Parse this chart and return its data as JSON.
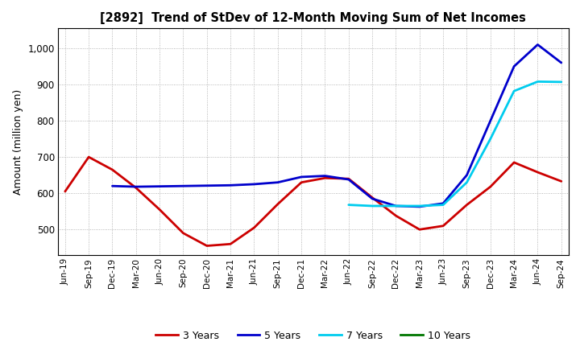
{
  "title": "[2892]  Trend of StDev of 12-Month Moving Sum of Net Incomes",
  "ylabel": "Amount (million yen)",
  "background_color": "#ffffff",
  "grid_color": "#999999",
  "ylim": [
    430,
    1055
  ],
  "yticks": [
    500,
    600,
    700,
    800,
    900,
    1000
  ],
  "ytick_labels": [
    "500",
    "600",
    "700",
    "800",
    "900",
    "1,000"
  ],
  "x_labels": [
    "Jun-19",
    "Sep-19",
    "Dec-19",
    "Mar-20",
    "Jun-20",
    "Sep-20",
    "Dec-20",
    "Mar-21",
    "Jun-21",
    "Sep-21",
    "Dec-21",
    "Mar-22",
    "Jun-22",
    "Sep-22",
    "Dec-22",
    "Mar-23",
    "Jun-23",
    "Sep-23",
    "Dec-23",
    "Mar-24",
    "Jun-24",
    "Sep-24"
  ],
  "series": {
    "3 Years": {
      "color": "#cc0000",
      "values": [
        605,
        700,
        665,
        615,
        555,
        490,
        455,
        460,
        505,
        570,
        630,
        642,
        640,
        588,
        538,
        500,
        510,
        568,
        618,
        685,
        658,
        633
      ]
    },
    "5 Years": {
      "color": "#0000cc",
      "values": [
        null,
        null,
        620,
        618,
        619,
        620,
        621,
        622,
        625,
        630,
        645,
        648,
        638,
        585,
        565,
        563,
        572,
        650,
        800,
        950,
        1010,
        960
      ]
    },
    "7 Years": {
      "color": "#00ccee",
      "values": [
        null,
        null,
        null,
        null,
        null,
        null,
        null,
        null,
        null,
        null,
        null,
        null,
        568,
        565,
        565,
        565,
        568,
        630,
        750,
        882,
        908,
        907
      ]
    },
    "10 Years": {
      "color": "#007700",
      "values": [
        null,
        null,
        null,
        null,
        null,
        null,
        null,
        null,
        null,
        null,
        null,
        null,
        null,
        null,
        null,
        null,
        null,
        null,
        null,
        null,
        null,
        null
      ]
    }
  },
  "legend_order": [
    "3 Years",
    "5 Years",
    "7 Years",
    "10 Years"
  ]
}
